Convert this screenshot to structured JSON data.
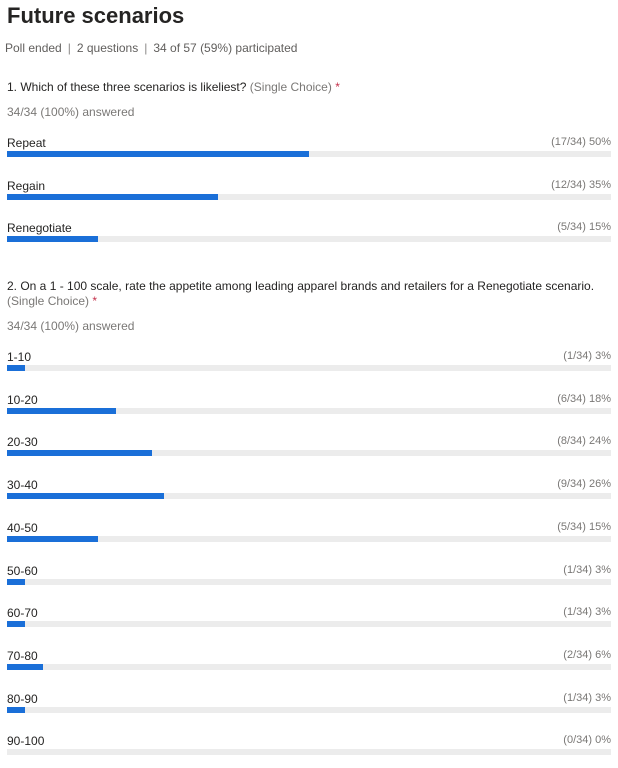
{
  "title": "Future scenarios",
  "meta": {
    "status": "Poll ended",
    "questions": "2 questions",
    "participation": "34 of 57 (59%) participated"
  },
  "accent": "#1a6fd8",
  "questions": [
    {
      "text": "1. Which of these three scenarios is likeliest?",
      "type": "(Single Choice)",
      "required": "*",
      "answered": "34/34 (100%) answered",
      "options": [
        {
          "label": "Repeat",
          "count": "(17/34) 50%",
          "percent": 50
        },
        {
          "label": "Regain",
          "count": "(12/34) 35%",
          "percent": 35
        },
        {
          "label": "Renegotiate",
          "count": "(5/34) 15%",
          "percent": 15
        }
      ]
    },
    {
      "text": "2. On a 1 - 100 scale, rate the appetite among leading apparel brands and retailers for a Renegotiate scenario.",
      "type": "(Single Choice)",
      "required": "*",
      "answered": "34/34 (100%) answered",
      "options": [
        {
          "label": "1-10",
          "count": "(1/34) 3%",
          "percent": 3
        },
        {
          "label": "10-20",
          "count": "(6/34) 18%",
          "percent": 18
        },
        {
          "label": "20-30",
          "count": "(8/34) 24%",
          "percent": 24
        },
        {
          "label": "30-40",
          "count": "(9/34) 26%",
          "percent": 26
        },
        {
          "label": "40-50",
          "count": "(5/34) 15%",
          "percent": 15
        },
        {
          "label": "50-60",
          "count": "(1/34) 3%",
          "percent": 3
        },
        {
          "label": "60-70",
          "count": "(1/34) 3%",
          "percent": 3
        },
        {
          "label": "70-80",
          "count": "(2/34) 6%",
          "percent": 6
        },
        {
          "label": "80-90",
          "count": "(1/34) 3%",
          "percent": 3
        },
        {
          "label": "90-100",
          "count": "(0/34) 0%",
          "percent": 0
        }
      ]
    }
  ]
}
